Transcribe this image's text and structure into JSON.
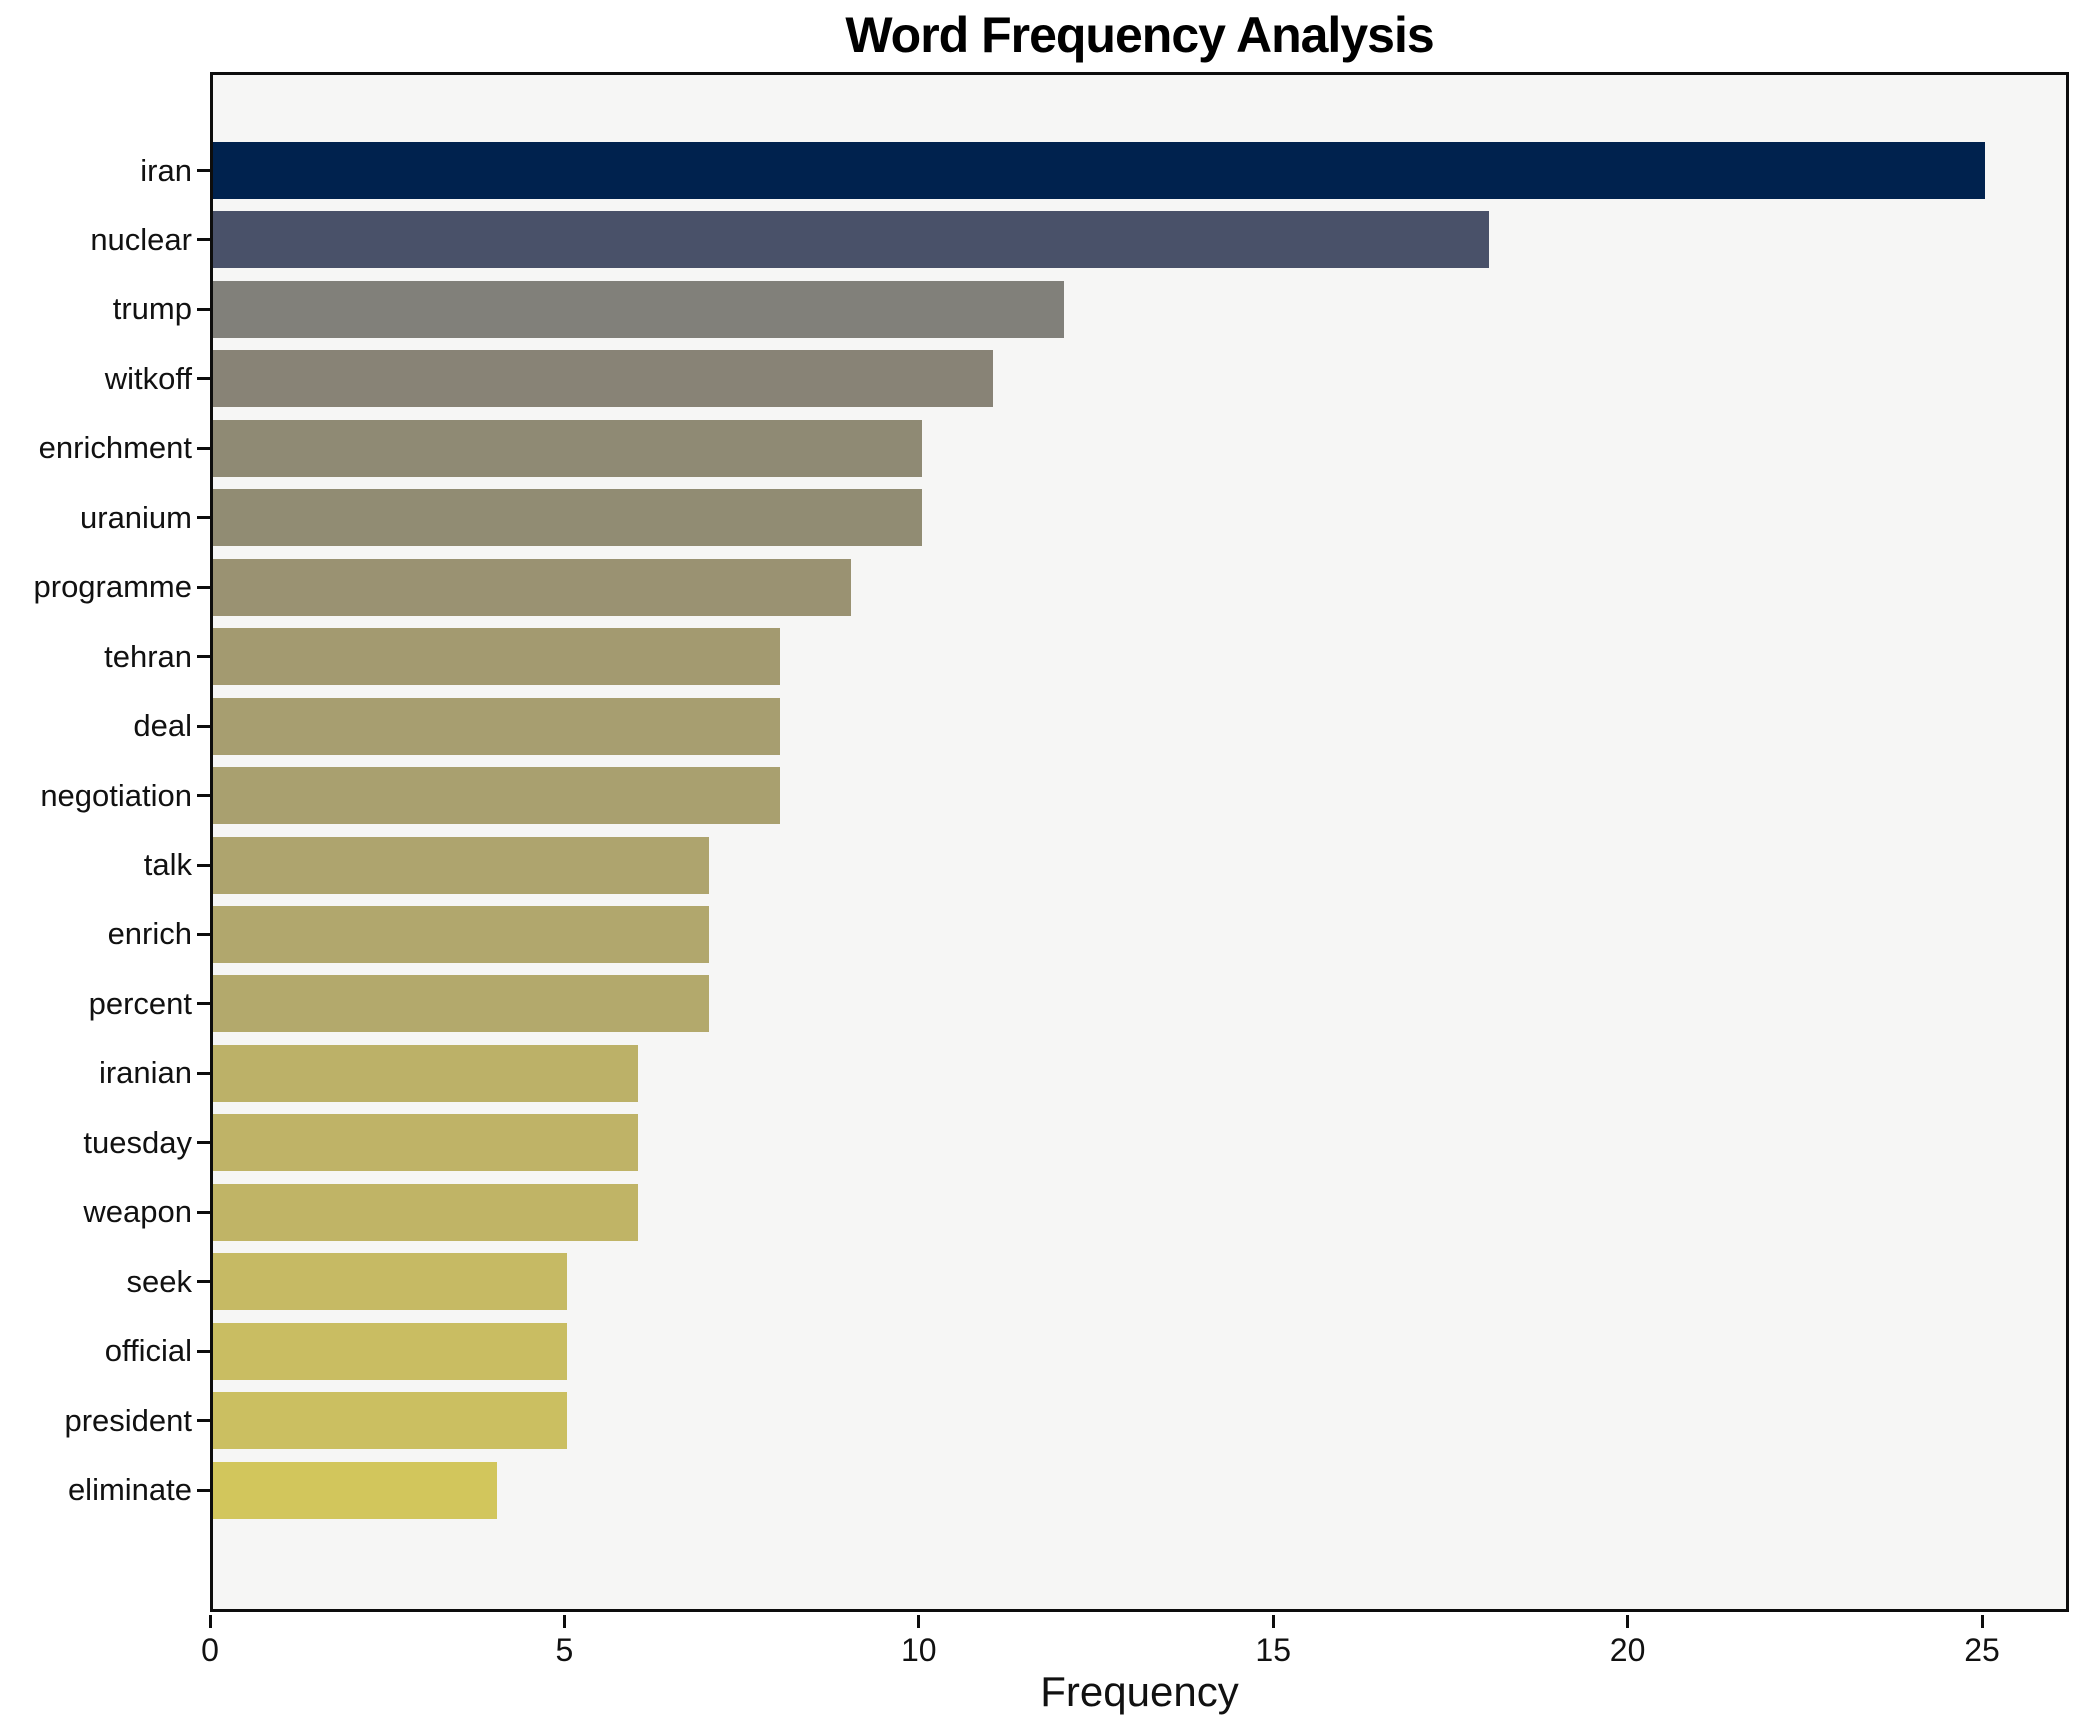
{
  "chart_data": {
    "type": "bar",
    "orientation": "horizontal",
    "title": "Word Frequency Analysis",
    "xlabel": "Frequency",
    "ylabel": "",
    "categories": [
      "iran",
      "nuclear",
      "trump",
      "witkoff",
      "enrichment",
      "uranium",
      "programme",
      "tehran",
      "deal",
      "negotiation",
      "talk",
      "enrich",
      "percent",
      "iranian",
      "tuesday",
      "weapon",
      "seek",
      "official",
      "president",
      "eliminate"
    ],
    "values": [
      25,
      18,
      12,
      11,
      10,
      10,
      9,
      8,
      8,
      8,
      7,
      7,
      7,
      6,
      6,
      6,
      5,
      5,
      5,
      4
    ],
    "bar_colors": [
      "#00224e",
      "#495169",
      "#81807a",
      "#888376",
      "#8f8a74",
      "#918c73",
      "#9a9272",
      "#a39a70",
      "#a79e70",
      "#a9a06f",
      "#aea46e",
      "#b1a76d",
      "#b3a96c",
      "#bcb168",
      "#bfb367",
      "#c0b466",
      "#c6ba64",
      "#c9bd62",
      "#cbbf61",
      "#d2c65c"
    ],
    "xticks": [
      0,
      5,
      10,
      15,
      20,
      25
    ],
    "xlim": [
      0,
      26.25
    ],
    "grid": false,
    "legend": null,
    "plot_background": "#f6f6f5",
    "figure_background": "#ffffff",
    "spine_color": "#0d0d0d",
    "text_color": "#111111"
  }
}
